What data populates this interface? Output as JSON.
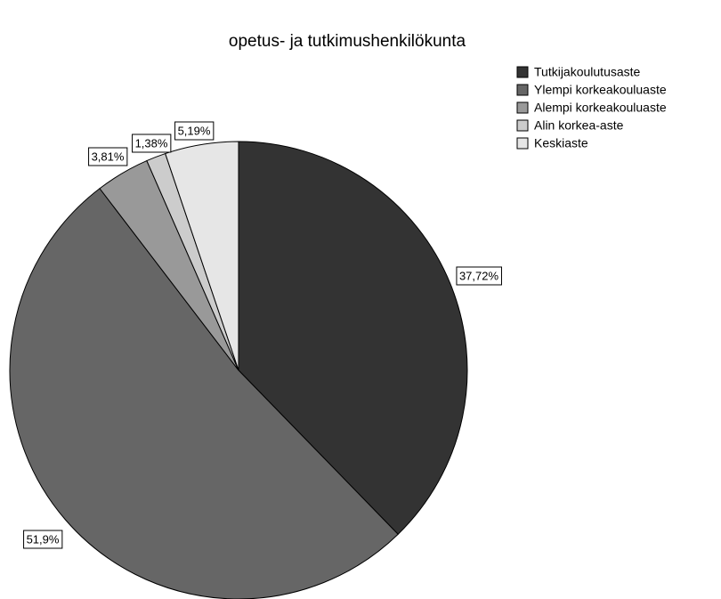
{
  "chart_data": {
    "type": "pie",
    "title": "opetus- ja tutkimushenkilökunta",
    "categories": [
      "Tutkijakoulutusaste",
      "Ylempi korkeakouluaste",
      "Alempi korkeakouluaste",
      "Alin korkea-aste",
      "Keskiaste"
    ],
    "values": [
      37.72,
      51.9,
      3.81,
      1.38,
      5.19
    ],
    "value_labels": [
      "37,72%",
      "51,9%",
      "3,81%",
      "1,38%",
      "5,19%"
    ],
    "colors": [
      "#333333",
      "#666666",
      "#999999",
      "#cccccc",
      "#e6e6e6"
    ],
    "legend": "top-right"
  }
}
